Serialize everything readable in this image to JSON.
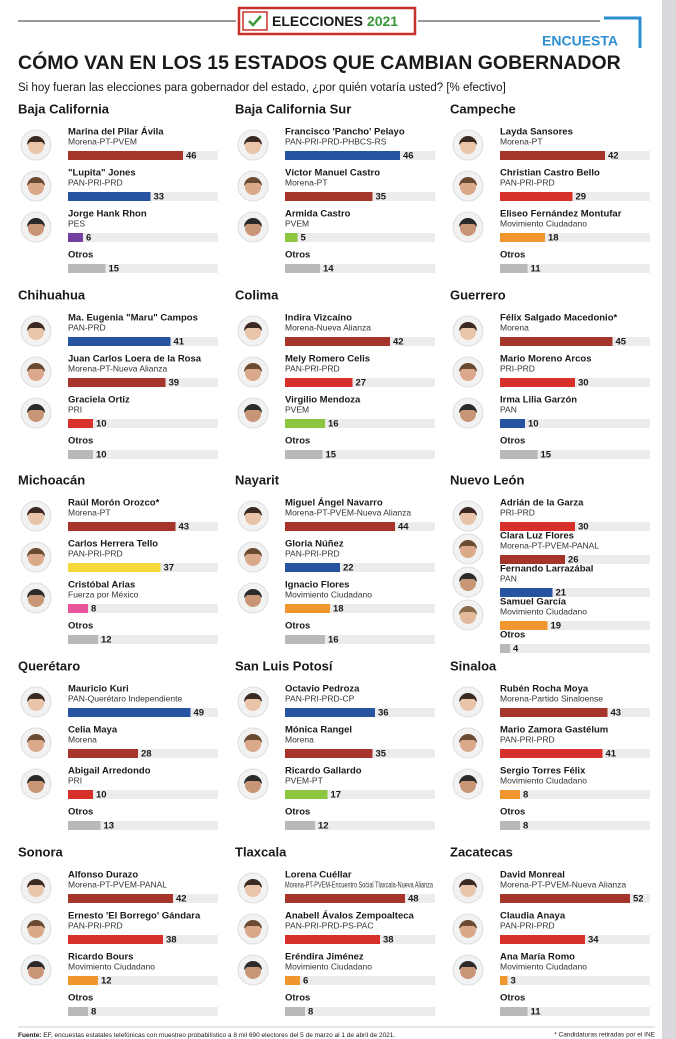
{
  "header": {
    "logo": "ELECCIONES",
    "year": "2021",
    "tag": "ENCUESTA",
    "title": "CÓMO VAN EN LOS 15 ESTADOS QUE CAMBIAN GOBERNADOR",
    "subtitle": "Si hoy fueran las elecciones para gobernador del estado, ¿por quién votaría usted? [% efectivo]"
  },
  "chart_data": [
    {
      "type": "bar",
      "title": "Baja California",
      "categories": [
        "Marina del Pilar Ávila",
        "\"Lupita\" Jones",
        "Jorge Hank Rhon",
        "Otros"
      ],
      "parties": [
        "Morena-PT-PVEM",
        "PAN-PRI-PRD",
        "PES",
        null
      ],
      "values": [
        46,
        33,
        6,
        15
      ],
      "colors": [
        "#a5352b",
        "#2753a3",
        "#7440a0",
        "#b9b9b9"
      ],
      "xlim": [
        0,
        60
      ]
    },
    {
      "type": "bar",
      "title": "Baja California Sur",
      "categories": [
        "Francisco 'Pancho' Pelayo",
        "Víctor Manuel Castro",
        "Armida Castro",
        "Otros"
      ],
      "parties": [
        "PAN-PRI-PRD-PHBCS-RS",
        "Morena-PT",
        "PVEM",
        null
      ],
      "values": [
        46,
        35,
        5,
        14
      ],
      "colors": [
        "#2753a3",
        "#a5352b",
        "#8cc63f",
        "#b9b9b9"
      ],
      "xlim": [
        0,
        60
      ]
    },
    {
      "type": "bar",
      "title": "Campeche",
      "categories": [
        "Layda Sansores",
        "Christian Castro Bello",
        "Eliseo Fernández Montufar",
        "Otros"
      ],
      "parties": [
        "Morena-PT",
        "PAN-PRI-PRD",
        "Movimiento Ciudadano",
        null
      ],
      "values": [
        42,
        29,
        18,
        11
      ],
      "colors": [
        "#a5352b",
        "#d8312b",
        "#f0962e",
        "#b9b9b9"
      ],
      "xlim": [
        0,
        60
      ]
    },
    {
      "type": "bar",
      "title": "Chihuahua",
      "categories": [
        "Ma. Eugenia \"Maru\" Campos",
        "Juan Carlos Loera de la Rosa",
        "Graciela Ortiz",
        "Otros"
      ],
      "parties": [
        "PAN-PRD",
        "Morena-PT-Nueva Alianza",
        "PRI",
        null
      ],
      "values": [
        41,
        39,
        10,
        10
      ],
      "colors": [
        "#2753a3",
        "#a5352b",
        "#d8312b",
        "#b9b9b9"
      ],
      "xlim": [
        0,
        60
      ]
    },
    {
      "type": "bar",
      "title": "Colima",
      "categories": [
        "Indira Vizcaíno",
        "Mely Romero Celis",
        "Virgilio Mendoza",
        "Otros"
      ],
      "parties": [
        "Morena-Nueva Alianza",
        "PAN-PRI-PRD",
        "PVEM",
        null
      ],
      "values": [
        42,
        27,
        16,
        15
      ],
      "colors": [
        "#a5352b",
        "#d8312b",
        "#8cc63f",
        "#b9b9b9"
      ],
      "xlim": [
        0,
        60
      ]
    },
    {
      "type": "bar",
      "title": "Guerrero",
      "categories": [
        "Félix Salgado Macedonio*",
        "Mario Moreno Arcos",
        "Irma Lilia Garzón",
        "Otros"
      ],
      "parties": [
        "Morena",
        "PRI-PRD",
        "PAN",
        null
      ],
      "values": [
        45,
        30,
        10,
        15
      ],
      "colors": [
        "#a5352b",
        "#d8312b",
        "#2753a3",
        "#b9b9b9"
      ],
      "xlim": [
        0,
        60
      ]
    },
    {
      "type": "bar",
      "title": "Michoacán",
      "categories": [
        "Raúl Morón Orozco*",
        "Carlos Herrera Tello",
        "Cristóbal Arias",
        "Otros"
      ],
      "parties": [
        "Morena-PT",
        "PAN-PRI-PRD",
        "Fuerza por México",
        null
      ],
      "values": [
        43,
        37,
        8,
        12
      ],
      "colors": [
        "#a5352b",
        "#f5d83a",
        "#e8559a",
        "#b9b9b9"
      ],
      "xlim": [
        0,
        60
      ]
    },
    {
      "type": "bar",
      "title": "Nayarit",
      "categories": [
        "Miguel Ángel Navarro",
        "Gloria Núñez",
        "Ignacio Flores",
        "Otros"
      ],
      "parties": [
        "Morena-PT-PVEM-Nueva Alianza",
        "PAN-PRI-PRD",
        "Movimiento Ciudadano",
        null
      ],
      "values": [
        44,
        22,
        18,
        16
      ],
      "colors": [
        "#a5352b",
        "#2753a3",
        "#f0962e",
        "#b9b9b9"
      ],
      "xlim": [
        0,
        60
      ]
    },
    {
      "type": "bar",
      "title": "Nuevo León",
      "categories": [
        "Adrián de la Garza",
        "Clara Luz Flores",
        "Fernando Larrazábal",
        "Samuel García",
        "Otros"
      ],
      "parties": [
        "PRI-PRD",
        "Morena-PT-PVEM-PANAL",
        "PAN",
        "Movimiento Ciudadano",
        null
      ],
      "values": [
        30,
        26,
        21,
        19,
        4
      ],
      "colors": [
        "#d8312b",
        "#a5352b",
        "#2753a3",
        "#f0962e",
        "#b9b9b9"
      ],
      "xlim": [
        0,
        60
      ]
    },
    {
      "type": "bar",
      "title": "Querétaro",
      "categories": [
        "Mauricio Kuri",
        "Celia Maya",
        "Abigail Arredondo",
        "Otros"
      ],
      "parties": [
        "PAN-Querétaro Independiente",
        "Morena",
        "PRI",
        null
      ],
      "values": [
        49,
        28,
        10,
        13
      ],
      "colors": [
        "#2753a3",
        "#a5352b",
        "#d8312b",
        "#b9b9b9"
      ],
      "xlim": [
        0,
        60
      ]
    },
    {
      "type": "bar",
      "title": "San Luis Potosí",
      "categories": [
        "Octavio Pedroza",
        "Mónica Rangel",
        "Ricardo Gallardo",
        "Otros"
      ],
      "parties": [
        "PAN-PRI-PRD-CP",
        "Morena",
        "PVEM-PT",
        null
      ],
      "values": [
        36,
        35,
        17,
        12
      ],
      "colors": [
        "#2753a3",
        "#a5352b",
        "#8cc63f",
        "#b9b9b9"
      ],
      "xlim": [
        0,
        60
      ]
    },
    {
      "type": "bar",
      "title": "Sinaloa",
      "categories": [
        "Rubén Rocha Moya",
        "Mario Zamora Gastélum",
        "Sergio Torres Félix",
        "Otros"
      ],
      "parties": [
        "Morena-Partido Sinaloense",
        "PAN-PRI-PRD",
        "Movimiento Ciudadano",
        null
      ],
      "values": [
        43,
        41,
        8,
        8
      ],
      "colors": [
        "#a5352b",
        "#d8312b",
        "#f0962e",
        "#b9b9b9"
      ],
      "xlim": [
        0,
        60
      ]
    },
    {
      "type": "bar",
      "title": "Sonora",
      "categories": [
        "Alfonso Durazo",
        "Ernesto 'El Borrego' Gándara",
        "Ricardo Bours",
        "Otros"
      ],
      "parties": [
        "Morena-PT-PVEM-PANAL",
        "PAN-PRI-PRD",
        "Movimiento Ciudadano",
        null
      ],
      "values": [
        42,
        38,
        12,
        8
      ],
      "colors": [
        "#a5352b",
        "#d8312b",
        "#f0962e",
        "#b9b9b9"
      ],
      "xlim": [
        0,
        60
      ]
    },
    {
      "type": "bar",
      "title": "Tlaxcala",
      "categories": [
        "Lorena Cuéllar",
        "Anabell Ávalos Zempoalteca",
        "Eréndira Jiménez",
        "Otros"
      ],
      "parties": [
        "Morena-PT-PVEM-Encuentro Social Tlaxcala-Nueva Alianza",
        "PAN-PRI-PRD-PS-PAC",
        "Movimiento Ciudadano",
        null
      ],
      "values": [
        48,
        38,
        6,
        8
      ],
      "colors": [
        "#a5352b",
        "#d8312b",
        "#f0962e",
        "#b9b9b9"
      ],
      "xlim": [
        0,
        60
      ]
    },
    {
      "type": "bar",
      "title": "Zacatecas",
      "categories": [
        "David Monreal",
        "Claudia Anaya",
        "Ana María Romo",
        "Otros"
      ],
      "parties": [
        "Morena-PT-PVEM-Nueva Alianza",
        "PAN-PRI-PRD",
        "Movimiento Ciudadano",
        null
      ],
      "values": [
        52,
        34,
        3,
        11
      ],
      "colors": [
        "#a5352b",
        "#d8312b",
        "#f0962e",
        "#b9b9b9"
      ],
      "xlim": [
        0,
        60
      ]
    }
  ],
  "footer": {
    "source_label": "Fuente:",
    "source": "EF, encuestas estatales telefónicas con muestreo probabilístico a 8 mil 690 electores del 5 de marzo al 1 de abril de 2021.",
    "note": "* Candidaturas retiradas por el INE"
  }
}
